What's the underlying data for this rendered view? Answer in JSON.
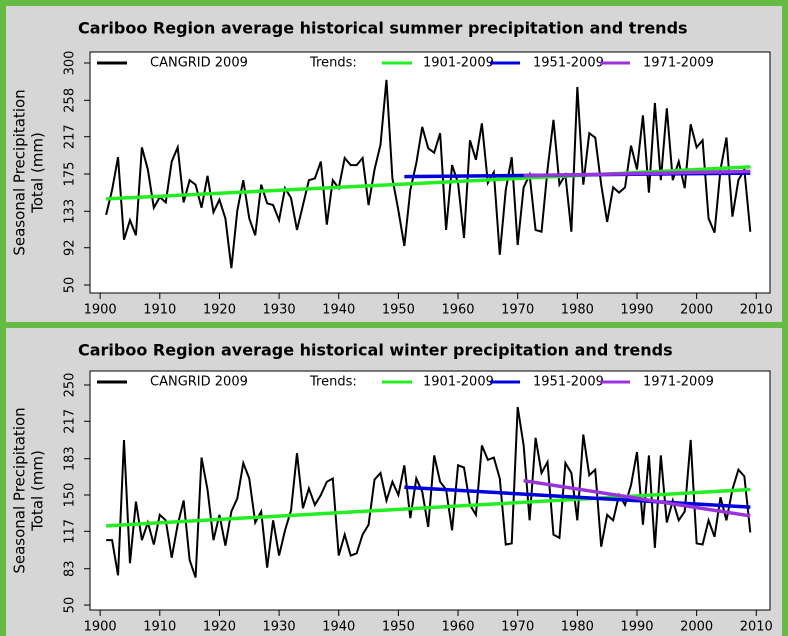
{
  "chart_data": [
    {
      "type": "line",
      "title": "Cariboo Region  average historical summer precipitation and trends",
      "ylabel": [
        "Seasonal Precipitation",
        "Total (mm)"
      ],
      "legend_label": "Trends:",
      "x": [
        1901,
        1902,
        1903,
        1904,
        1905,
        1906,
        1907,
        1908,
        1909,
        1910,
        1911,
        1912,
        1913,
        1914,
        1915,
        1916,
        1917,
        1918,
        1919,
        1920,
        1921,
        1922,
        1923,
        1924,
        1925,
        1926,
        1927,
        1928,
        1929,
        1930,
        1931,
        1932,
        1933,
        1934,
        1935,
        1936,
        1937,
        1938,
        1939,
        1940,
        1941,
        1942,
        1943,
        1944,
        1945,
        1946,
        1947,
        1948,
        1949,
        1950,
        1951,
        1952,
        1953,
        1954,
        1955,
        1956,
        1957,
        1958,
        1959,
        1960,
        1961,
        1962,
        1963,
        1964,
        1965,
        1966,
        1967,
        1968,
        1969,
        1970,
        1971,
        1972,
        1973,
        1974,
        1975,
        1976,
        1977,
        1978,
        1979,
        1980,
        1981,
        1982,
        1983,
        1984,
        1985,
        1986,
        1987,
        1988,
        1989,
        1990,
        1991,
        1992,
        1993,
        1994,
        1995,
        1996,
        1997,
        1998,
        1999,
        2000,
        2001,
        2002,
        2003,
        2004,
        2005,
        2006,
        2007,
        2008,
        2009
      ],
      "series": [
        {
          "name": "CANGRID 2009",
          "color": "#000000",
          "values": [
            129,
            157,
            194,
            101,
            123,
            106,
            205,
            180,
            137,
            149,
            143,
            189,
            205,
            143,
            168,
            163,
            137,
            173,
            132,
            146,
            125,
            69,
            134,
            168,
            125,
            106,
            163,
            142,
            140,
            123,
            159,
            148,
            112,
            140,
            168,
            170,
            189,
            118,
            168,
            159,
            193,
            185,
            185,
            193,
            140,
            180,
            208,
            281,
            170,
            134,
            94,
            157,
            187,
            228,
            204,
            199,
            221,
            112,
            185,
            165,
            103,
            213,
            191,
            232,
            165,
            177,
            84,
            157,
            194,
            95,
            160,
            174,
            112,
            110,
            180,
            236,
            163,
            174,
            110,
            273,
            163,
            221,
            216,
            163,
            121,
            160,
            154,
            160,
            207,
            180,
            241,
            154,
            255,
            168,
            249,
            168,
            189,
            159,
            231,
            205,
            213,
            125,
            109,
            180,
            216,
            127,
            168,
            180,
            110
          ]
        },
        {
          "name": "1901-2009",
          "color": "#22ee22",
          "x": [
            1901,
            2009
          ],
          "values": [
            147,
            183
          ]
        },
        {
          "name": "1951-2009",
          "color": "#0000dd",
          "x": [
            1951,
            2009
          ],
          "values": [
            172,
            176
          ]
        },
        {
          "name": "1971-2009",
          "color": "#9933dd",
          "x": [
            1971,
            2009
          ],
          "values": [
            173,
            178
          ]
        }
      ],
      "xlim": [
        1898.3,
        2012.3
      ],
      "xticks": [
        1900,
        1910,
        1920,
        1930,
        1940,
        1950,
        1960,
        1970,
        1980,
        1990,
        2000,
        2010
      ],
      "ylim": [
        41,
        312.4
      ],
      "yticks": [
        50,
        92,
        133,
        175,
        217,
        258,
        300
      ]
    },
    {
      "type": "line",
      "title": "Cariboo Region  average historical winter precipitation and trends",
      "ylabel": [
        "Seasonal Precipitation",
        "Total (mm)"
      ],
      "legend_label": "Trends:",
      "x": [
        1901,
        1902,
        1903,
        1904,
        1905,
        1906,
        1907,
        1908,
        1909,
        1910,
        1911,
        1912,
        1913,
        1914,
        1915,
        1916,
        1917,
        1918,
        1919,
        1920,
        1921,
        1922,
        1923,
        1924,
        1925,
        1926,
        1927,
        1928,
        1929,
        1930,
        1931,
        1932,
        1933,
        1934,
        1935,
        1936,
        1937,
        1938,
        1939,
        1940,
        1941,
        1942,
        1943,
        1944,
        1945,
        1946,
        1947,
        1948,
        1949,
        1950,
        1951,
        1952,
        1953,
        1954,
        1955,
        1956,
        1957,
        1958,
        1959,
        1960,
        1961,
        1962,
        1963,
        1964,
        1965,
        1966,
        1967,
        1968,
        1969,
        1970,
        1971,
        1972,
        1973,
        1974,
        1975,
        1976,
        1977,
        1978,
        1979,
        1980,
        1981,
        1982,
        1983,
        1984,
        1985,
        1986,
        1987,
        1988,
        1989,
        1990,
        1991,
        1992,
        1993,
        1994,
        1995,
        1996,
        1997,
        1998,
        1999,
        2000,
        2001,
        2002,
        2003,
        2004,
        2005,
        2006,
        2007,
        2008,
        2009
      ],
      "series": [
        {
          "name": "CANGRID 2009",
          "color": "#000000",
          "values": [
            109,
            109,
            77,
            200,
            88,
            144,
            109,
            125,
            105,
            132,
            127,
            93,
            123,
            145,
            91,
            75,
            184,
            155,
            109,
            132,
            104,
            135,
            147,
            179,
            165,
            125,
            135,
            84,
            127,
            95,
            118,
            136,
            188,
            138,
            156,
            141,
            150,
            162,
            165,
            95,
            114,
            95,
            97,
            114,
            123,
            164,
            170,
            145,
            162,
            150,
            177,
            129,
            165,
            153,
            121,
            186,
            162,
            155,
            118,
            177,
            175,
            141,
            132,
            195,
            182,
            184,
            165,
            105,
            106,
            230,
            195,
            127,
            202,
            170,
            180,
            114,
            111,
            179,
            170,
            127,
            205,
            168,
            173,
            103,
            132,
            127,
            150,
            141,
            159,
            189,
            123,
            186,
            102,
            186,
            125,
            145,
            127,
            135,
            200,
            106,
            105,
            127,
            112,
            148,
            127,
            155,
            173,
            167,
            116
          ]
        },
        {
          "name": "1901-2009",
          "color": "#22ee22",
          "x": [
            1901,
            2009
          ],
          "values": [
            122,
            155
          ]
        },
        {
          "name": "1951-2009",
          "color": "#0000dd",
          "x": [
            1951,
            2009
          ],
          "values": [
            157,
            139
          ]
        },
        {
          "name": "1971-2009",
          "color": "#9933dd",
          "x": [
            1971,
            2009
          ],
          "values": [
            163,
            131
          ]
        }
      ],
      "xlim": [
        1898.3,
        2012.3
      ],
      "xticks": [
        1900,
        1910,
        1920,
        1930,
        1940,
        1950,
        1960,
        1970,
        1980,
        1990,
        2000,
        2010
      ],
      "ylim": [
        45.5,
        262.7
      ],
      "yticks": [
        50,
        83,
        117,
        150,
        183,
        217,
        250
      ]
    }
  ]
}
